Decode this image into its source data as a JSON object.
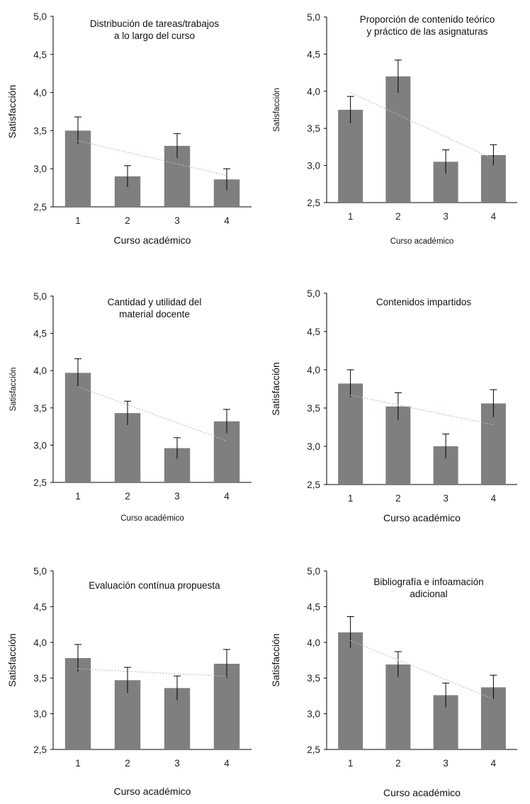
{
  "chart_data": [
    {
      "type": "bar",
      "title": [
        "Distribución de tareas/trabajos",
        "a lo largo del curso"
      ],
      "xlabel": "Curso académico",
      "ylabel": "Satisfacción",
      "categories": [
        "1",
        "2",
        "3",
        "4"
      ],
      "values": [
        3.5,
        2.9,
        3.3,
        2.86
      ],
      "errors": [
        0.18,
        0.14,
        0.16,
        0.14
      ],
      "trendline": "linear",
      "ylim": [
        2.5,
        5.0
      ],
      "yticks": [
        "2,5",
        "3,0",
        "3,5",
        "4,0",
        "4,5",
        "5,0"
      ],
      "grid": false
    },
    {
      "type": "bar",
      "title": [
        "Proporción de contenido teórico",
        "y práctico de las asignaturas"
      ],
      "xlabel": "Curso académico",
      "ylabel": "Satisfacción",
      "categories": [
        "1",
        "2",
        "3",
        "4"
      ],
      "values": [
        3.75,
        4.2,
        3.05,
        3.14
      ],
      "errors": [
        0.18,
        0.22,
        0.16,
        0.14
      ],
      "trendline": "linear",
      "ylim": [
        2.5,
        5.0
      ],
      "yticks": [
        "2,5",
        "3,0",
        "3,5",
        "4,0",
        "4,5",
        "5,0"
      ],
      "grid": false
    },
    {
      "type": "bar",
      "title": [
        "Cantidad y utilidad del",
        "material docente"
      ],
      "xlabel": "Curso académico",
      "ylabel": "Satisfacción",
      "categories": [
        "1",
        "2",
        "3",
        "4"
      ],
      "values": [
        3.97,
        3.43,
        2.96,
        3.32
      ],
      "errors": [
        0.19,
        0.16,
        0.14,
        0.16
      ],
      "trendline": "linear",
      "ylim": [
        2.5,
        5.0
      ],
      "yticks": [
        "2,5",
        "3,0",
        "3,5",
        "4,0",
        "4,5",
        "5,0"
      ],
      "grid": false
    },
    {
      "type": "bar",
      "title": [
        "Contenidos impartidos"
      ],
      "xlabel": "Curso académico",
      "ylabel": "Satisfacción",
      "categories": [
        "1",
        "2",
        "3",
        "4"
      ],
      "values": [
        3.82,
        3.52,
        3.0,
        3.56
      ],
      "errors": [
        0.18,
        0.18,
        0.16,
        0.18
      ],
      "trendline": "linear",
      "ylim": [
        2.5,
        5.0
      ],
      "yticks": [
        "2,5",
        "3,0",
        "3,5",
        "4,0",
        "4,5",
        "5,0"
      ],
      "grid": false
    },
    {
      "type": "bar",
      "title": [
        "Evaluación contínua propuesta"
      ],
      "xlabel": "Curso académico",
      "ylabel": "Satisfacción",
      "categories": [
        "1",
        "2",
        "3",
        "4"
      ],
      "values": [
        3.78,
        3.47,
        3.36,
        3.7
      ],
      "errors": [
        0.19,
        0.18,
        0.17,
        0.2
      ],
      "trendline": "linear",
      "ylim": [
        2.5,
        5.0
      ],
      "yticks": [
        "2,5",
        "3,0",
        "3,5",
        "4,0",
        "4,5",
        "5,0"
      ],
      "grid": false
    },
    {
      "type": "bar",
      "title": [
        "Bibliografía e infoamación",
        "adicional"
      ],
      "xlabel": "Curso académico",
      "ylabel": "Satisfacción",
      "categories": [
        "1",
        "2",
        "3",
        "4"
      ],
      "values": [
        4.14,
        3.69,
        3.26,
        3.37
      ],
      "errors": [
        0.22,
        0.18,
        0.17,
        0.17
      ],
      "trendline": "linear",
      "ylim": [
        2.5,
        5.0
      ],
      "yticks": [
        "2,5",
        "3,0",
        "3,5",
        "4,0",
        "4,5",
        "5,0"
      ],
      "grid": false
    }
  ]
}
